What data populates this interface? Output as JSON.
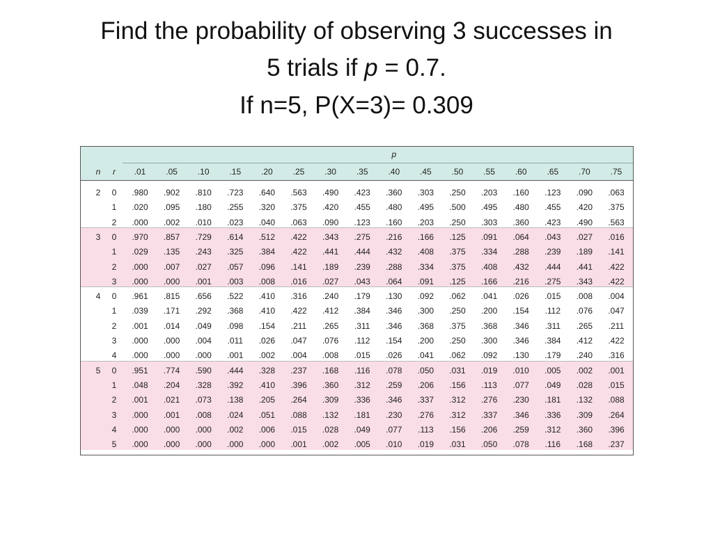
{
  "title": {
    "line1": "Find the probability of observing 3 successes in",
    "line2_pre": "5 trials if ",
    "line2_var": "p",
    "line2_post": " = 0.7.",
    "line3": "If n=5, P(X=3)= 0.309"
  },
  "table": {
    "param_label": "p",
    "columns": [
      "n",
      "r",
      ".01",
      ".05",
      ".10",
      ".15",
      ".20",
      ".25",
      ".30",
      ".35",
      ".40",
      ".45",
      ".50",
      ".55",
      ".60",
      ".65",
      ".70",
      ".75"
    ],
    "groups": [
      {
        "n": "2",
        "rows": [
          {
            "r": "0",
            "cells": [
              ".980",
              ".902",
              ".810",
              ".723",
              ".640",
              ".563",
              ".490",
              ".423",
              ".360",
              ".303",
              ".250",
              ".203",
              ".160",
              ".123",
              ".090",
              ".063"
            ]
          },
          {
            "r": "1",
            "cells": [
              ".020",
              ".095",
              ".180",
              ".255",
              ".320",
              ".375",
              ".420",
              ".455",
              ".480",
              ".495",
              ".500",
              ".495",
              ".480",
              ".455",
              ".420",
              ".375"
            ]
          },
          {
            "r": "2",
            "cells": [
              ".000",
              ".002",
              ".010",
              ".023",
              ".040",
              ".063",
              ".090",
              ".123",
              ".160",
              ".203",
              ".250",
              ".303",
              ".360",
              ".423",
              ".490",
              ".563"
            ]
          }
        ]
      },
      {
        "n": "3",
        "rows": [
          {
            "r": "0",
            "cells": [
              ".970",
              ".857",
              ".729",
              ".614",
              ".512",
              ".422",
              ".343",
              ".275",
              ".216",
              ".166",
              ".125",
              ".091",
              ".064",
              ".043",
              ".027",
              ".016"
            ]
          },
          {
            "r": "1",
            "cells": [
              ".029",
              ".135",
              ".243",
              ".325",
              ".384",
              ".422",
              ".441",
              ".444",
              ".432",
              ".408",
              ".375",
              ".334",
              ".288",
              ".239",
              ".189",
              ".141"
            ]
          },
          {
            "r": "2",
            "cells": [
              ".000",
              ".007",
              ".027",
              ".057",
              ".096",
              ".141",
              ".189",
              ".239",
              ".288",
              ".334",
              ".375",
              ".408",
              ".432",
              ".444",
              ".441",
              ".422"
            ]
          },
          {
            "r": "3",
            "cells": [
              ".000",
              ".000",
              ".001",
              ".003",
              ".008",
              ".016",
              ".027",
              ".043",
              ".064",
              ".091",
              ".125",
              ".166",
              ".216",
              ".275",
              ".343",
              ".422"
            ]
          }
        ]
      },
      {
        "n": "4",
        "rows": [
          {
            "r": "0",
            "cells": [
              ".961",
              ".815",
              ".656",
              ".522",
              ".410",
              ".316",
              ".240",
              ".179",
              ".130",
              ".092",
              ".062",
              ".041",
              ".026",
              ".015",
              ".008",
              ".004"
            ]
          },
          {
            "r": "1",
            "cells": [
              ".039",
              ".171",
              ".292",
              ".368",
              ".410",
              ".422",
              ".412",
              ".384",
              ".346",
              ".300",
              ".250",
              ".200",
              ".154",
              ".112",
              ".076",
              ".047"
            ]
          },
          {
            "r": "2",
            "cells": [
              ".001",
              ".014",
              ".049",
              ".098",
              ".154",
              ".211",
              ".265",
              ".311",
              ".346",
              ".368",
              ".375",
              ".368",
              ".346",
              ".311",
              ".265",
              ".211"
            ]
          },
          {
            "r": "3",
            "cells": [
              ".000",
              ".000",
              ".004",
              ".011",
              ".026",
              ".047",
              ".076",
              ".112",
              ".154",
              ".200",
              ".250",
              ".300",
              ".346",
              ".384",
              ".412",
              ".422"
            ]
          },
          {
            "r": "4",
            "cells": [
              ".000",
              ".000",
              ".000",
              ".001",
              ".002",
              ".004",
              ".008",
              ".015",
              ".026",
              ".041",
              ".062",
              ".092",
              ".130",
              ".179",
              ".240",
              ".316"
            ]
          }
        ]
      },
      {
        "n": "5",
        "rows": [
          {
            "r": "0",
            "cells": [
              ".951",
              ".774",
              ".590",
              ".444",
              ".328",
              ".237",
              ".168",
              ".116",
              ".078",
              ".050",
              ".031",
              ".019",
              ".010",
              ".005",
              ".002",
              ".001"
            ]
          },
          {
            "r": "1",
            "cells": [
              ".048",
              ".204",
              ".328",
              ".392",
              ".410",
              ".396",
              ".360",
              ".312",
              ".259",
              ".206",
              ".156",
              ".113",
              ".077",
              ".049",
              ".028",
              ".015"
            ]
          },
          {
            "r": "2",
            "cells": [
              ".001",
              ".021",
              ".073",
              ".138",
              ".205",
              ".264",
              ".309",
              ".336",
              ".346",
              ".337",
              ".312",
              ".276",
              ".230",
              ".181",
              ".132",
              ".088"
            ]
          },
          {
            "r": "3",
            "cells": [
              ".000",
              ".001",
              ".008",
              ".024",
              ".051",
              ".088",
              ".132",
              ".181",
              ".230",
              ".276",
              ".312",
              ".337",
              ".346",
              ".336",
              ".309",
              ".264"
            ]
          },
          {
            "r": "4",
            "cells": [
              ".000",
              ".000",
              ".000",
              ".002",
              ".006",
              ".015",
              ".028",
              ".049",
              ".077",
              ".113",
              ".156",
              ".206",
              ".259",
              ".312",
              ".360",
              ".396"
            ]
          },
          {
            "r": "5",
            "cells": [
              ".000",
              ".000",
              ".000",
              ".000",
              ".000",
              ".001",
              ".002",
              ".005",
              ".010",
              ".019",
              ".031",
              ".050",
              ".078",
              ".116",
              ".168",
              ".237"
            ]
          }
        ]
      }
    ]
  }
}
